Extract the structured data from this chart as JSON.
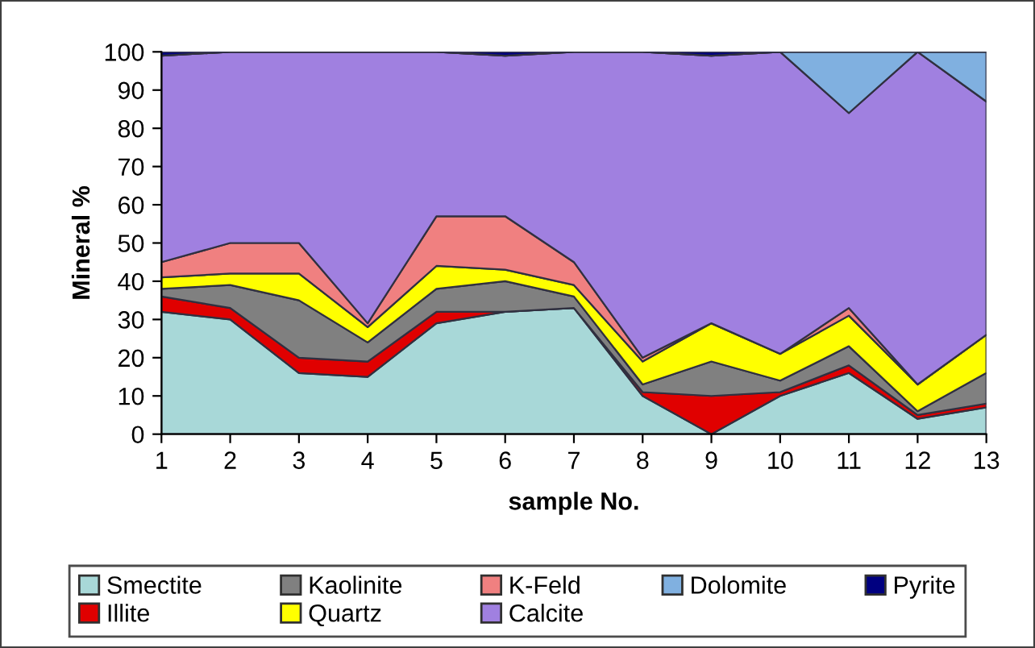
{
  "chart_data": {
    "type": "area",
    "stacked": true,
    "xlabel": "sample No.",
    "ylabel": "Mineral %",
    "x": [
      1,
      2,
      3,
      4,
      5,
      6,
      7,
      8,
      9,
      10,
      11,
      12,
      13
    ],
    "xlim": [
      1,
      13
    ],
    "xticks": [
      1,
      2,
      3,
      4,
      5,
      6,
      7,
      8,
      9,
      10,
      11,
      12,
      13
    ],
    "ylim": [
      0,
      100
    ],
    "yticks": [
      0,
      10,
      20,
      30,
      40,
      50,
      60,
      70,
      80,
      90,
      100
    ],
    "grid": false,
    "legend": "bottom",
    "series": [
      {
        "name": "Smectite",
        "color": "#a8d8d8",
        "values": [
          32,
          30,
          16,
          15,
          29,
          32,
          33,
          10,
          0,
          10,
          16,
          4,
          7
        ]
      },
      {
        "name": "Illite",
        "color": "#e00000",
        "values": [
          4,
          3,
          4,
          4,
          3,
          0,
          0,
          1,
          10,
          1,
          2,
          1,
          1
        ]
      },
      {
        "name": "Kaolinite",
        "color": "#808080",
        "values": [
          2,
          6,
          15,
          5,
          6,
          8,
          3,
          2,
          9,
          3,
          5,
          1,
          8
        ]
      },
      {
        "name": "Quartz",
        "color": "#ffff00",
        "values": [
          3,
          3,
          7,
          4,
          6,
          3,
          3,
          6,
          10,
          7,
          8,
          7,
          10
        ]
      },
      {
        "name": "K-Feld",
        "color": "#f08080",
        "values": [
          4,
          8,
          8,
          1,
          13,
          14,
          6,
          1,
          0,
          0,
          2,
          0,
          0
        ]
      },
      {
        "name": "Calcite",
        "color": "#a080e0",
        "values": [
          54,
          50,
          50,
          71,
          43,
          42,
          55,
          80,
          70,
          79,
          51,
          87,
          61
        ]
      },
      {
        "name": "Dolomite",
        "color": "#80b0e0",
        "values": [
          0,
          0,
          0,
          0,
          0,
          0,
          0,
          0,
          0,
          0,
          16,
          0,
          13
        ]
      },
      {
        "name": "Pyrite",
        "color": "#000080",
        "values": [
          1,
          0,
          0,
          0,
          0,
          1,
          0,
          0,
          1,
          0,
          0,
          0,
          0
        ]
      }
    ]
  }
}
